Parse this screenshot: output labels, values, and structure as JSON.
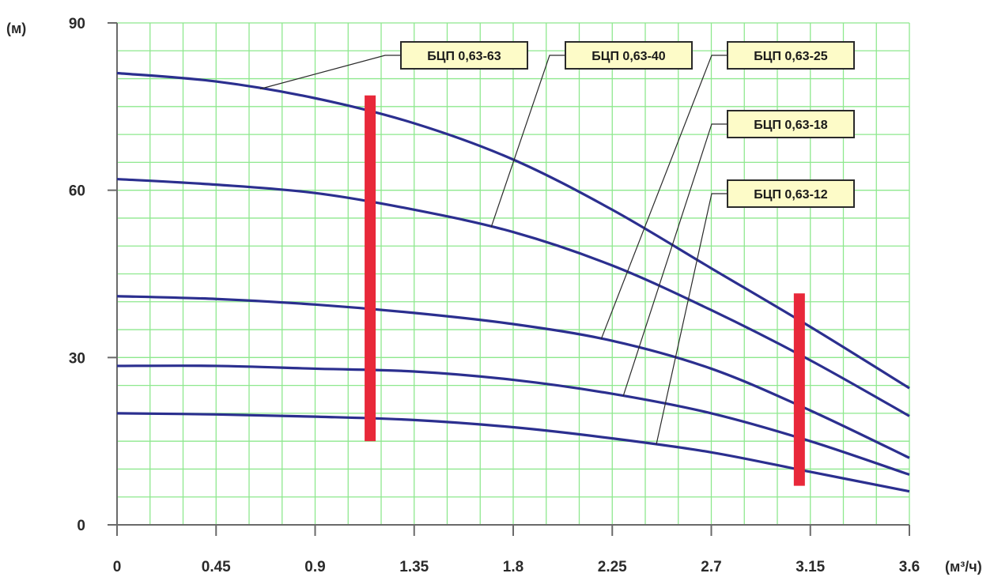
{
  "chart_data": {
    "type": "line",
    "title": "",
    "xlabel": "(м³/ч)",
    "ylabel": "(м)",
    "xlim": [
      0,
      3.6
    ],
    "ylim": [
      0,
      90
    ],
    "x_ticks": [
      "0",
      "0.45",
      "0.9",
      "1.35",
      "1.8",
      "2.25",
      "2.7",
      "3.15",
      "3.6"
    ],
    "y_ticks": [
      "0",
      "30",
      "60",
      "90"
    ],
    "grid": true,
    "x": [
      0,
      0.45,
      0.9,
      1.35,
      1.8,
      2.25,
      2.7,
      3.15,
      3.6
    ],
    "series": [
      {
        "name": "БЦП 0,63-63",
        "values": [
          81,
          79.5,
          76.5,
          72,
          65.5,
          56.5,
          46,
          35.5,
          24.5
        ]
      },
      {
        "name": "БЦП 0,63-40",
        "values": [
          62,
          61,
          59.5,
          56.5,
          52.5,
          46.5,
          38.5,
          29.5,
          19.5
        ]
      },
      {
        "name": "БЦП 0,63-25",
        "values": [
          41,
          40.5,
          39.5,
          38,
          36,
          33,
          28,
          20.5,
          12
        ]
      },
      {
        "name": "БЦП 0,63-18",
        "values": [
          28.5,
          28.5,
          28,
          27.5,
          26,
          23.5,
          20,
          15,
          9
        ]
      },
      {
        "name": "БЦП 0,63-12",
        "values": [
          20,
          19.8,
          19.4,
          18.8,
          17.5,
          15.5,
          13,
          9.5,
          6
        ]
      }
    ],
    "operating_range": [
      {
        "x": 1.15,
        "y_from": 15,
        "y_to": 77
      },
      {
        "x": 3.1,
        "y_from": 7,
        "y_to": 41.5
      }
    ],
    "colors": {
      "curve": "#2b2f8f",
      "grid": "#8ee88e",
      "range_bar": "#e8283a",
      "label_fill": "#fdfbc8",
      "text": "#2a2a2a"
    }
  }
}
